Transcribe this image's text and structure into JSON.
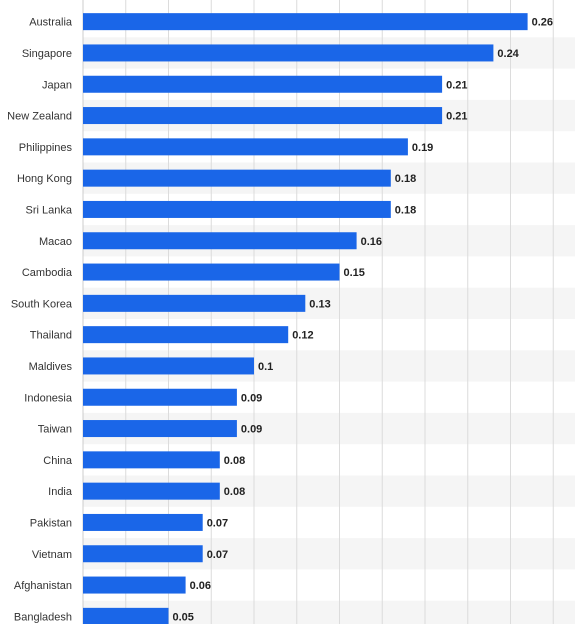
{
  "chart_data": {
    "type": "bar",
    "orientation": "horizontal",
    "categories": [
      "Australia",
      "Singapore",
      "Japan",
      "New Zealand",
      "Philippines",
      "Hong Kong",
      "Sri Lanka",
      "Macao",
      "Cambodia",
      "South Korea",
      "Thailand",
      "Maldives",
      "Indonesia",
      "Taiwan",
      "China",
      "India",
      "Pakistan",
      "Vietnam",
      "Afghanistan",
      "Bangladesh"
    ],
    "values": [
      0.26,
      0.24,
      0.21,
      0.21,
      0.19,
      0.18,
      0.18,
      0.16,
      0.15,
      0.13,
      0.12,
      0.1,
      0.09,
      0.09,
      0.08,
      0.08,
      0.07,
      0.07,
      0.06,
      0.05
    ],
    "value_labels": [
      "0.26",
      "0.24",
      "0.21",
      "0.21",
      "0.19",
      "0.18",
      "0.18",
      "0.16",
      "0.15",
      "0.13",
      "0.12",
      "0.1",
      "0.09",
      "0.09",
      "0.08",
      "0.08",
      "0.07",
      "0.07",
      "0.06",
      "0.05"
    ],
    "title": "",
    "xlabel": "",
    "ylabel": "",
    "xlim": [
      0,
      0.3
    ],
    "grid": true,
    "bar_color": "#1a66e8",
    "row_stripe_color": "#f5f5f5",
    "grid_color": "#dcdcdc"
  }
}
